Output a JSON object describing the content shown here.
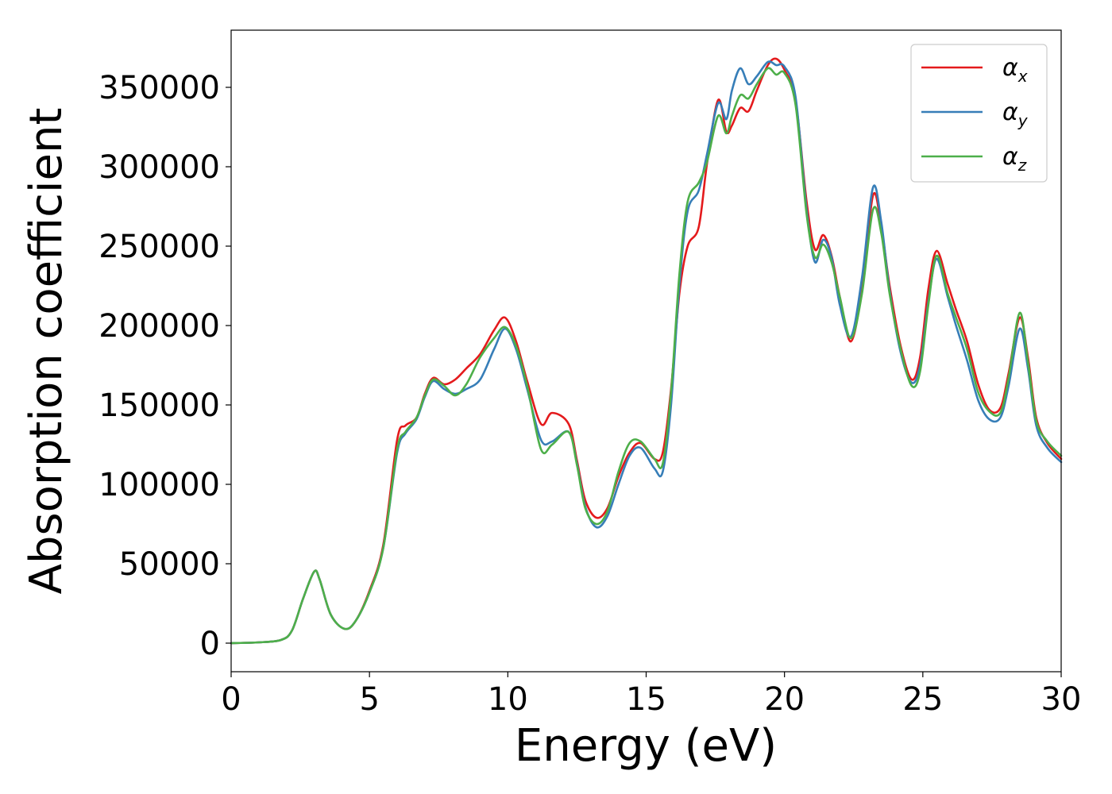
{
  "chart_data": {
    "type": "line",
    "title": "",
    "xlabel": "Energy (eV)",
    "ylabel": "Absorption coefficient",
    "xlim": [
      0,
      30
    ],
    "ylim": [
      -18000,
      386000
    ],
    "xticks": [
      0,
      5,
      10,
      15,
      20,
      25,
      30
    ],
    "yticks": [
      0,
      50000,
      100000,
      150000,
      200000,
      250000,
      300000,
      350000
    ],
    "grid": false,
    "legend_position": "top-right",
    "series": [
      {
        "name": "α",
        "subscript": "x",
        "color": "#e41a1c",
        "x": [
          0,
          1.0,
          1.8,
          2.2,
          2.6,
          3.0,
          3.2,
          3.6,
          4.1,
          4.5,
          5.0,
          5.5,
          6.0,
          6.3,
          6.7,
          7.0,
          7.3,
          7.7,
          8.1,
          8.5,
          9.0,
          9.5,
          9.9,
          10.3,
          10.7,
          11.2,
          11.6,
          12.2,
          12.5,
          12.8,
          13.2,
          13.6,
          14.0,
          14.4,
          14.8,
          15.3,
          15.6,
          15.9,
          16.2,
          16.5,
          16.9,
          17.2,
          17.6,
          17.9,
          18.1,
          18.4,
          18.7,
          19.0,
          19.4,
          19.7,
          20.0,
          20.4,
          20.8,
          21.1,
          21.4,
          21.7,
          22.0,
          22.4,
          22.8,
          23.2,
          23.5,
          23.8,
          24.2,
          24.6,
          24.9,
          25.2,
          25.5,
          25.9,
          26.2,
          26.6,
          27.0,
          27.4,
          27.8,
          28.1,
          28.5,
          28.8,
          29.1,
          29.5,
          30.0
        ],
        "values": [
          0,
          500,
          2000,
          8000,
          28000,
          45000,
          40000,
          18000,
          9000,
          14000,
          33000,
          62000,
          128000,
          137000,
          142000,
          157000,
          167000,
          163000,
          166000,
          173000,
          182000,
          197000,
          205000,
          190000,
          165000,
          138000,
          145000,
          138000,
          115000,
          90000,
          79000,
          85000,
          105000,
          120000,
          126000,
          116000,
          120000,
          160000,
          220000,
          250000,
          262000,
          302000,
          342000,
          322000,
          326000,
          337000,
          335000,
          348000,
          364000,
          368000,
          361000,
          342000,
          278000,
          248000,
          257000,
          244000,
          218000,
          190000,
          223000,
          282000,
          262000,
          225000,
          187000,
          166000,
          180000,
          223000,
          247000,
          226000,
          210000,
          190000,
          163000,
          147000,
          148000,
          170000,
          205000,
          180000,
          142000,
          126000,
          116000
        ]
      },
      {
        "name": "α",
        "subscript": "y",
        "color": "#377eb8",
        "x": [
          0,
          1.0,
          1.8,
          2.2,
          2.6,
          3.0,
          3.2,
          3.6,
          4.1,
          4.5,
          5.0,
          5.5,
          6.0,
          6.3,
          6.7,
          7.0,
          7.3,
          7.7,
          8.1,
          8.5,
          9.0,
          9.5,
          9.9,
          10.3,
          10.7,
          11.2,
          11.6,
          12.2,
          12.5,
          12.8,
          13.2,
          13.6,
          14.0,
          14.4,
          14.8,
          15.3,
          15.6,
          15.9,
          16.2,
          16.5,
          16.9,
          17.2,
          17.6,
          17.9,
          18.1,
          18.4,
          18.7,
          19.0,
          19.4,
          19.7,
          20.0,
          20.4,
          20.8,
          21.1,
          21.4,
          21.7,
          22.0,
          22.4,
          22.8,
          23.2,
          23.5,
          23.8,
          24.2,
          24.6,
          24.9,
          25.2,
          25.5,
          25.9,
          26.2,
          26.6,
          27.0,
          27.4,
          27.8,
          28.1,
          28.5,
          28.8,
          29.1,
          29.5,
          30.0
        ],
        "values": [
          0,
          500,
          2000,
          8000,
          28000,
          45000,
          40000,
          18000,
          9000,
          14000,
          32000,
          60000,
          120000,
          132000,
          141000,
          155000,
          165000,
          160000,
          157000,
          160000,
          166000,
          185000,
          198000,
          185000,
          160000,
          128000,
          127000,
          133000,
          113000,
          86000,
          73000,
          80000,
          100000,
          118000,
          123000,
          110000,
          108000,
          150000,
          225000,
          272000,
          285000,
          308000,
          340000,
          330000,
          348000,
          362000,
          352000,
          357000,
          366000,
          364000,
          363000,
          344000,
          273000,
          240000,
          254000,
          243000,
          213000,
          193000,
          230000,
          287000,
          265000,
          222000,
          183000,
          164000,
          175000,
          215000,
          242000,
          218000,
          200000,
          178000,
          153000,
          141000,
          142000,
          162000,
          198000,
          173000,
          137000,
          123000,
          114000
        ]
      },
      {
        "name": "α",
        "subscript": "z",
        "color": "#4daf4a",
        "x": [
          0,
          1.0,
          1.8,
          2.2,
          2.6,
          3.0,
          3.2,
          3.6,
          4.1,
          4.5,
          5.0,
          5.5,
          6.0,
          6.3,
          6.7,
          7.0,
          7.3,
          7.7,
          8.1,
          8.5,
          9.0,
          9.5,
          9.9,
          10.3,
          10.7,
          11.2,
          11.6,
          12.2,
          12.5,
          12.8,
          13.2,
          13.6,
          14.0,
          14.4,
          14.8,
          15.3,
          15.6,
          15.9,
          16.2,
          16.5,
          16.9,
          17.2,
          17.6,
          17.9,
          18.1,
          18.4,
          18.7,
          19.0,
          19.4,
          19.7,
          20.0,
          20.4,
          20.8,
          21.1,
          21.4,
          21.7,
          22.0,
          22.4,
          22.8,
          23.2,
          23.5,
          23.8,
          24.2,
          24.6,
          24.9,
          25.2,
          25.5,
          25.9,
          26.2,
          26.6,
          27.0,
          27.4,
          27.8,
          28.1,
          28.5,
          28.8,
          29.1,
          29.5,
          30.0
        ],
        "values": [
          0,
          500,
          2000,
          8000,
          28000,
          45000,
          40000,
          18000,
          9000,
          14000,
          32000,
          60000,
          122000,
          133000,
          142000,
          156000,
          166000,
          162000,
          156000,
          163000,
          180000,
          192000,
          199000,
          187000,
          162000,
          122000,
          125000,
          133000,
          112000,
          85000,
          75000,
          83000,
          108000,
          126000,
          127000,
          116000,
          113000,
          158000,
          232000,
          278000,
          290000,
          303000,
          332000,
          321000,
          332000,
          345000,
          343000,
          352000,
          362000,
          358000,
          359000,
          339000,
          270000,
          243000,
          251000,
          240000,
          218000,
          192000,
          220000,
          273000,
          258000,
          220000,
          185000,
          162000,
          171000,
          213000,
          244000,
          220000,
          205000,
          185000,
          158000,
          146000,
          145000,
          167000,
          208000,
          177000,
          140000,
          127000,
          118000
        ]
      }
    ]
  }
}
